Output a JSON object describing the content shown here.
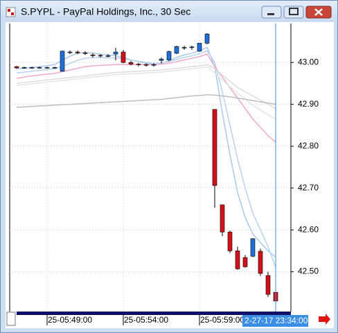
{
  "window": {
    "title": "S.PYPL - PayPal Holdings, Inc., 30 Sec"
  },
  "chart_data": {
    "type": "candlestick",
    "categories": [
      null,
      null,
      null,
      null,
      "25-05:49:00",
      null,
      null,
      null,
      null,
      null,
      null,
      null,
      null,
      null,
      "25-05:54:00",
      null,
      null,
      null,
      null,
      null,
      null,
      null,
      null,
      null,
      "25-05:59:00",
      null,
      null,
      null,
      null,
      null,
      null,
      null,
      null,
      null,
      null
    ],
    "open": [
      42.99,
      42.988,
      42.988,
      42.988,
      42.988,
      42.988,
      42.979,
      43.025,
      43.025,
      43.023,
      43.018,
      43.017,
      43.016,
      43.02,
      43.025,
      43.0,
      42.996,
      42.995,
      42.994,
      43.005,
      43.006,
      43.022,
      43.036,
      43.036,
      43.027,
      43.046,
      42.888,
      42.66,
      42.595,
      42.55,
      42.534,
      42.537,
      42.549,
      42.491,
      42.451
    ],
    "high": [
      42.992,
      42.99,
      42.99,
      42.99,
      42.99,
      42.99,
      43.029,
      43.029,
      43.029,
      43.027,
      43.022,
      43.02,
      43.02,
      43.035,
      43.03,
      43.004,
      42.999,
      42.998,
      42.998,
      43.012,
      43.028,
      43.04,
      43.04,
      43.04,
      43.047,
      43.07,
      42.888,
      42.66,
      42.598,
      42.56,
      42.54,
      42.58,
      42.555,
      42.5,
      42.46
    ],
    "low": [
      42.985,
      42.985,
      42.985,
      42.985,
      42.985,
      42.985,
      42.978,
      43.02,
      43.02,
      43.018,
      43.012,
      43.012,
      43.012,
      43.005,
      42.998,
      42.993,
      42.99,
      42.99,
      42.99,
      42.998,
      43.003,
      43.02,
      43.03,
      43.03,
      43.025,
      43.043,
      42.653,
      42.585,
      42.545,
      42.505,
      42.51,
      42.535,
      42.49,
      42.44,
      42.43
    ],
    "close": [
      42.987,
      42.988,
      42.988,
      42.988,
      42.988,
      42.988,
      43.027,
      43.025,
      43.023,
      43.022,
      43.017,
      43.016,
      43.016,
      43.025,
      43.0,
      42.996,
      42.995,
      42.994,
      42.995,
      43.008,
      43.026,
      43.038,
      43.036,
      43.037,
      43.046,
      43.068,
      42.706,
      42.595,
      42.55,
      42.507,
      42.512,
      42.579,
      42.496,
      42.446,
      42.43
    ],
    "up_color": "#1f6fd8",
    "down_color": "#d4111b",
    "series": [
      {
        "color": "#a9c8ea",
        "values": [
          42.985,
          42.986,
          42.988,
          42.99,
          42.992,
          42.995,
          43.005,
          43.015,
          43.022,
          43.024,
          43.022,
          43.02,
          43.018,
          43.016,
          43.012,
          43.006,
          43.002,
          42.998,
          42.996,
          42.998,
          43.004,
          43.012,
          43.018,
          43.022,
          43.028,
          43.036,
          42.99,
          42.88,
          42.78,
          42.69,
          42.63,
          42.59,
          42.57,
          42.55,
          42.535
        ]
      },
      {
        "color": "#b8d2ee",
        "values": [
          42.975,
          42.977,
          42.979,
          42.981,
          42.983,
          42.985,
          42.99,
          42.998,
          43.005,
          43.01,
          43.012,
          43.012,
          43.011,
          43.011,
          43.009,
          43.006,
          43.003,
          43.0,
          42.998,
          42.999,
          43.002,
          43.007,
          43.012,
          43.016,
          43.021,
          43.028,
          43.0,
          42.93,
          42.85,
          42.77,
          42.7,
          42.64,
          42.6,
          42.56,
          42.51
        ]
      },
      {
        "color": "#f0a8c8",
        "values": [
          42.962,
          42.965,
          42.968,
          42.97,
          42.972,
          42.974,
          42.978,
          42.982,
          42.986,
          42.99,
          42.992,
          42.993,
          42.994,
          42.995,
          42.995,
          42.995,
          42.995,
          42.995,
          42.995,
          42.996,
          42.998,
          43.002,
          43.006,
          43.01,
          43.014,
          43.02,
          42.99,
          42.965,
          42.94,
          42.915,
          42.89,
          42.865,
          42.845,
          42.825,
          42.81
        ]
      },
      {
        "color": "#dcdcdc",
        "values": [
          42.95,
          42.952,
          42.954,
          42.956,
          42.958,
          42.96,
          42.962,
          42.964,
          42.966,
          42.968,
          42.97,
          42.972,
          42.974,
          42.976,
          42.977,
          42.978,
          42.979,
          42.98,
          42.981,
          42.982,
          42.984,
          42.986,
          42.988,
          42.99,
          42.992,
          42.995,
          42.985,
          42.97,
          42.955,
          42.94,
          42.93,
          42.92,
          42.91,
          42.9,
          42.89
        ]
      },
      {
        "color": "#e4e4e4",
        "values": [
          42.945,
          42.947,
          42.949,
          42.951,
          42.953,
          42.955,
          42.957,
          42.959,
          42.961,
          42.963,
          42.965,
          42.967,
          42.969,
          42.971,
          42.972,
          42.973,
          42.974,
          42.975,
          42.976,
          42.977,
          42.979,
          42.981,
          42.983,
          42.985,
          42.987,
          42.99,
          42.975,
          42.958,
          42.942,
          42.927,
          42.912,
          42.898,
          42.886,
          42.875,
          42.865
        ]
      },
      {
        "color": "#bdbdbd",
        "values": [
          42.893,
          42.894,
          42.895,
          42.896,
          42.897,
          42.898,
          42.899,
          42.9,
          42.901,
          42.902,
          42.903,
          42.904,
          42.905,
          42.906,
          42.907,
          42.908,
          42.909,
          42.91,
          42.911,
          42.912,
          42.914,
          42.916,
          42.918,
          42.92,
          42.921,
          42.923,
          42.922,
          42.92,
          42.918,
          42.915,
          42.912,
          42.909,
          42.906,
          42.903,
          42.9
        ]
      }
    ],
    "ylim": [
      42.405,
      43.093
    ],
    "yticks": [
      {
        "value": 42.5,
        "label": "42.50"
      },
      {
        "value": 42.6,
        "label": "42.60"
      },
      {
        "value": 42.7,
        "label": "42.70"
      },
      {
        "value": 42.8,
        "label": "42.80"
      },
      {
        "value": 42.9,
        "label": "42.90"
      },
      {
        "value": 43,
        "label": "43.00"
      }
    ],
    "grid": true,
    "cursor_index": 34,
    "cursor_label": "2-27-17 23:34:00"
  }
}
